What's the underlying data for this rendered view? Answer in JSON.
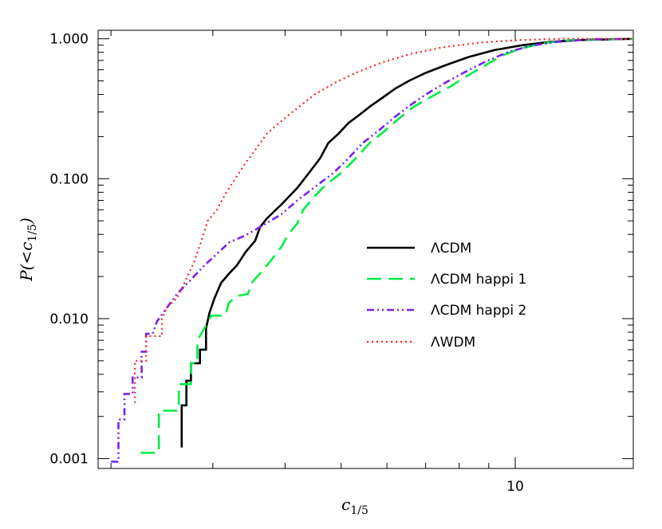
{
  "chart_data": {
    "type": "line",
    "title": "",
    "xlabel": "c1/5",
    "ylabel": "P(<c1/5)",
    "xscale": "log",
    "yscale": "log",
    "xlim": [
      1.9,
      16
    ],
    "ylim": [
      0.00085,
      1.15
    ],
    "grid": false,
    "legend_position": "center-right",
    "x_tick_labels": [
      {
        "value": 10,
        "label": "10"
      }
    ],
    "y_tick_labels": [
      {
        "value": 0.001,
        "label": "0.001"
      },
      {
        "value": 0.01,
        "label": "0.010"
      },
      {
        "value": 0.1,
        "label": "0.100"
      },
      {
        "value": 1.0,
        "label": "1.000"
      }
    ],
    "series": [
      {
        "name": "ΛCDM",
        "color": "#000000",
        "style": "solid",
        "points": [
          [
            2.65,
            0.0012
          ],
          [
            2.65,
            0.0024
          ],
          [
            2.7,
            0.0024
          ],
          [
            2.7,
            0.0036
          ],
          [
            2.75,
            0.0036
          ],
          [
            2.75,
            0.0048
          ],
          [
            2.85,
            0.0048
          ],
          [
            2.85,
            0.006
          ],
          [
            2.92,
            0.006
          ],
          [
            2.92,
            0.0085
          ],
          [
            2.96,
            0.011
          ],
          [
            3.02,
            0.014
          ],
          [
            3.1,
            0.018
          ],
          [
            3.2,
            0.021
          ],
          [
            3.3,
            0.024
          ],
          [
            3.42,
            0.03
          ],
          [
            3.55,
            0.036
          ],
          [
            3.62,
            0.045
          ],
          [
            3.72,
            0.052
          ],
          [
            3.95,
            0.066
          ],
          [
            4.2,
            0.086
          ],
          [
            4.4,
            0.11
          ],
          [
            4.6,
            0.14
          ],
          [
            4.75,
            0.18
          ],
          [
            4.95,
            0.21
          ],
          [
            5.15,
            0.25
          ],
          [
            5.4,
            0.29
          ],
          [
            5.62,
            0.33
          ],
          [
            5.9,
            0.38
          ],
          [
            6.2,
            0.44
          ],
          [
            6.55,
            0.5
          ],
          [
            7.0,
            0.57
          ],
          [
            7.6,
            0.65
          ],
          [
            8.3,
            0.74
          ],
          [
            9.2,
            0.83
          ],
          [
            10.3,
            0.9
          ],
          [
            11.5,
            0.95
          ],
          [
            13,
            0.98
          ],
          [
            16,
            1.0
          ]
        ]
      },
      {
        "name": "ΛCDM happi 1",
        "color": "#00ee44",
        "style": "dashed",
        "points": [
          [
            2.25,
            0.0011
          ],
          [
            2.42,
            0.0011
          ],
          [
            2.42,
            0.0022
          ],
          [
            2.62,
            0.0022
          ],
          [
            2.62,
            0.0034
          ],
          [
            2.75,
            0.0034
          ],
          [
            2.75,
            0.0048
          ],
          [
            2.82,
            0.0048
          ],
          [
            2.82,
            0.007
          ],
          [
            2.9,
            0.0085
          ],
          [
            2.98,
            0.0105
          ],
          [
            3.15,
            0.0105
          ],
          [
            3.2,
            0.013
          ],
          [
            3.3,
            0.0145
          ],
          [
            3.45,
            0.015
          ],
          [
            3.5,
            0.018
          ],
          [
            3.62,
            0.021
          ],
          [
            3.78,
            0.026
          ],
          [
            3.95,
            0.033
          ],
          [
            4.05,
            0.04
          ],
          [
            4.2,
            0.048
          ],
          [
            4.3,
            0.06
          ],
          [
            4.5,
            0.075
          ],
          [
            4.7,
            0.09
          ],
          [
            5.0,
            0.11
          ],
          [
            5.3,
            0.14
          ],
          [
            5.6,
            0.18
          ],
          [
            5.95,
            0.22
          ],
          [
            6.3,
            0.27
          ],
          [
            6.7,
            0.33
          ],
          [
            7.2,
            0.39
          ],
          [
            7.75,
            0.46
          ],
          [
            8.3,
            0.55
          ],
          [
            8.9,
            0.65
          ],
          [
            9.5,
            0.76
          ],
          [
            10.2,
            0.85
          ],
          [
            11.2,
            0.93
          ],
          [
            12.5,
            0.98
          ],
          [
            16,
            1.0
          ]
        ]
      },
      {
        "name": "ΛCDM happi 2",
        "color": "#7722ee",
        "style": "dashdotdot",
        "points": [
          [
            2.0,
            0.00095
          ],
          [
            2.06,
            0.00095
          ],
          [
            2.06,
            0.0019
          ],
          [
            2.11,
            0.0019
          ],
          [
            2.11,
            0.0029
          ],
          [
            2.18,
            0.0029
          ],
          [
            2.18,
            0.0038
          ],
          [
            2.26,
            0.0038
          ],
          [
            2.26,
            0.0058
          ],
          [
            2.3,
            0.0058
          ],
          [
            2.3,
            0.0078
          ],
          [
            2.36,
            0.0078
          ],
          [
            2.4,
            0.0095
          ],
          [
            2.5,
            0.012
          ],
          [
            2.6,
            0.015
          ],
          [
            2.75,
            0.019
          ],
          [
            2.9,
            0.024
          ],
          [
            3.05,
            0.029
          ],
          [
            3.2,
            0.035
          ],
          [
            3.4,
            0.039
          ],
          [
            3.65,
            0.046
          ],
          [
            3.95,
            0.056
          ],
          [
            4.2,
            0.07
          ],
          [
            4.55,
            0.09
          ],
          [
            4.85,
            0.11
          ],
          [
            5.15,
            0.14
          ],
          [
            5.45,
            0.18
          ],
          [
            5.8,
            0.22
          ],
          [
            6.15,
            0.27
          ],
          [
            6.55,
            0.33
          ],
          [
            7.0,
            0.4
          ],
          [
            7.6,
            0.49
          ],
          [
            8.2,
            0.58
          ],
          [
            8.9,
            0.69
          ],
          [
            9.7,
            0.8
          ],
          [
            10.6,
            0.89
          ],
          [
            11.8,
            0.95
          ],
          [
            13.5,
            0.99
          ],
          [
            16,
            1.0
          ]
        ]
      },
      {
        "name": "ΛWDM",
        "color": "#ff2020",
        "style": "dotted",
        "points": [
          [
            2.2,
            0.0025
          ],
          [
            2.2,
            0.005
          ],
          [
            2.3,
            0.005
          ],
          [
            2.3,
            0.0075
          ],
          [
            2.45,
            0.0075
          ],
          [
            2.45,
            0.01
          ],
          [
            2.5,
            0.012
          ],
          [
            2.6,
            0.014
          ],
          [
            2.68,
            0.018
          ],
          [
            2.78,
            0.025
          ],
          [
            2.86,
            0.035
          ],
          [
            2.94,
            0.05
          ],
          [
            3.05,
            0.06
          ],
          [
            3.15,
            0.077
          ],
          [
            3.28,
            0.1
          ],
          [
            3.42,
            0.13
          ],
          [
            3.55,
            0.16
          ],
          [
            3.72,
            0.21
          ],
          [
            3.95,
            0.26
          ],
          [
            4.2,
            0.32
          ],
          [
            4.5,
            0.4
          ],
          [
            4.9,
            0.49
          ],
          [
            5.35,
            0.58
          ],
          [
            5.9,
            0.68
          ],
          [
            6.6,
            0.78
          ],
          [
            7.5,
            0.87
          ],
          [
            8.7,
            0.94
          ],
          [
            10.2,
            0.98
          ],
          [
            12,
            1.0
          ],
          [
            16,
            1.0
          ]
        ]
      }
    ]
  }
}
